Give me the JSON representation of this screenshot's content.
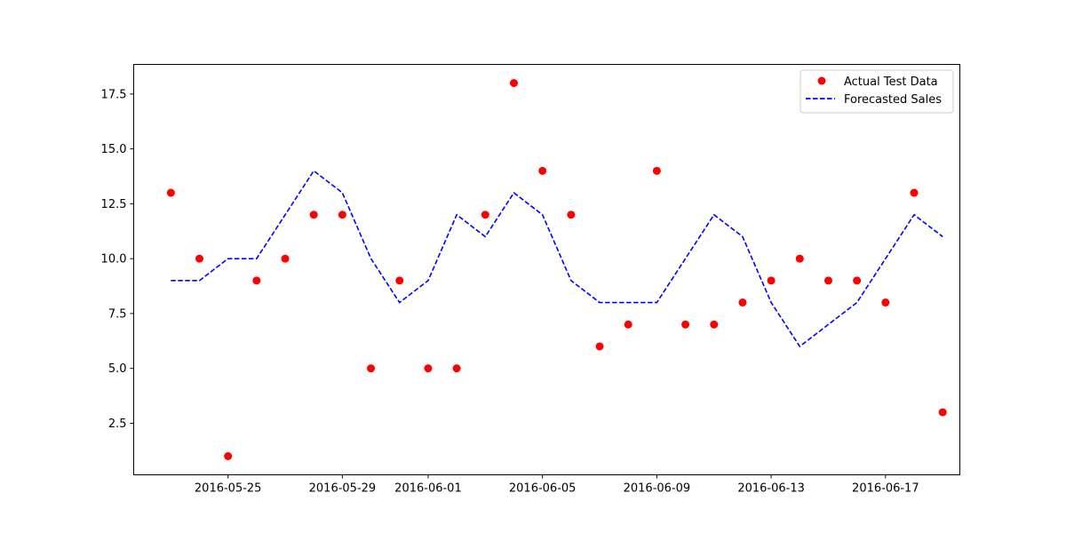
{
  "chart_data": {
    "type": "scatter",
    "title": "",
    "xlabel": "",
    "ylabel": "",
    "x": [
      "2016-05-23",
      "2016-05-24",
      "2016-05-25",
      "2016-05-26",
      "2016-05-27",
      "2016-05-28",
      "2016-05-29",
      "2016-05-30",
      "2016-05-31",
      "2016-06-01",
      "2016-06-02",
      "2016-06-03",
      "2016-06-04",
      "2016-06-05",
      "2016-06-06",
      "2016-06-07",
      "2016-06-08",
      "2016-06-09",
      "2016-06-10",
      "2016-06-11",
      "2016-06-12",
      "2016-06-13",
      "2016-06-14",
      "2016-06-15",
      "2016-06-16",
      "2016-06-17",
      "2016-06-18",
      "2016-06-19"
    ],
    "series": [
      {
        "name": "Actual Test Data",
        "kind": "scatter",
        "color": "#ff0000",
        "values": [
          13,
          10,
          1,
          9,
          10,
          12,
          12,
          5,
          9,
          5,
          5,
          12,
          18,
          14,
          12,
          6,
          7,
          14,
          7,
          7,
          8,
          9,
          10,
          9,
          9,
          8,
          13,
          3
        ]
      },
      {
        "name": "Forecasted Sales",
        "kind": "line",
        "style": "dashed",
        "color": "#0000ff",
        "values": [
          9,
          9,
          10,
          10,
          12,
          14,
          13,
          10,
          8,
          9,
          12,
          11,
          13,
          12,
          9,
          8,
          8,
          8,
          10,
          12,
          11,
          8,
          6,
          7,
          8,
          10,
          12,
          11
        ]
      }
    ],
    "xlim": [
      "2016-05-21.7",
      "2016-06-19.6"
    ],
    "ylim": [
      0.15,
      18.85
    ],
    "xticks": [
      "2016-05-25",
      "2016-05-29",
      "2016-06-01",
      "2016-06-05",
      "2016-06-09",
      "2016-06-13",
      "2016-06-17"
    ],
    "yticks": [
      2.5,
      5.0,
      7.5,
      10.0,
      12.5,
      15.0,
      17.5
    ],
    "yticklabels": [
      "2.5",
      "5.0",
      "7.5",
      "10.0",
      "12.5",
      "15.0",
      "17.5"
    ],
    "grid": false,
    "legend_position": "top-right"
  }
}
